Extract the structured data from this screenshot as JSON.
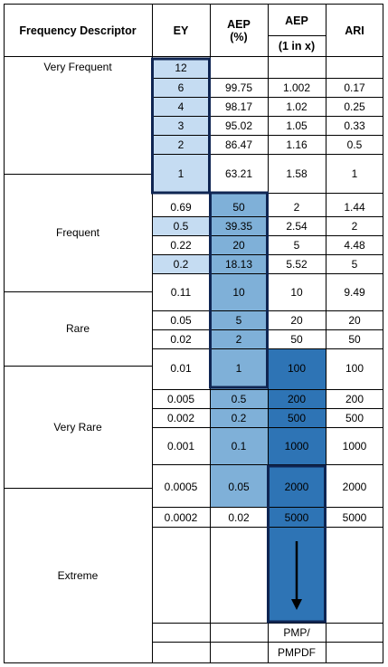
{
  "headers": {
    "descriptor": "Frequency Descriptor",
    "ey": "EY",
    "aep_pct_line1": "AEP",
    "aep_pct_line2": "(%)",
    "aep_1inx_line1": "AEP",
    "aep_1inx_line2": "(1 in x)",
    "ari": "ARI"
  },
  "descriptors": [
    "Very Frequent",
    "Frequent",
    "Rare",
    "Very Rare",
    "Extreme"
  ],
  "rows": [
    {
      "ey": "12",
      "aep_pct": "",
      "aep_1inx": "",
      "ari": ""
    },
    {
      "ey": "6",
      "aep_pct": "99.75",
      "aep_1inx": "1.002",
      "ari": "0.17"
    },
    {
      "ey": "4",
      "aep_pct": "98.17",
      "aep_1inx": "1.02",
      "ari": "0.25"
    },
    {
      "ey": "3",
      "aep_pct": "95.02",
      "aep_1inx": "1.05",
      "ari": "0.33"
    },
    {
      "ey": "2",
      "aep_pct": "86.47",
      "aep_1inx": "1.16",
      "ari": "0.5"
    },
    {
      "ey": "1",
      "aep_pct": "63.21",
      "aep_1inx": "1.58",
      "ari": "1"
    },
    {
      "ey": "0.69",
      "aep_pct": "50",
      "aep_1inx": "2",
      "ari": "1.44"
    },
    {
      "ey": "0.5",
      "aep_pct": "39.35",
      "aep_1inx": "2.54",
      "ari": "2"
    },
    {
      "ey": "0.22",
      "aep_pct": "20",
      "aep_1inx": "5",
      "ari": "4.48"
    },
    {
      "ey": "0.2",
      "aep_pct": "18.13",
      "aep_1inx": "5.52",
      "ari": "5"
    },
    {
      "ey": "0.11",
      "aep_pct": "10",
      "aep_1inx": "10",
      "ari": "9.49"
    },
    {
      "ey": "0.05",
      "aep_pct": "5",
      "aep_1inx": "20",
      "ari": "20"
    },
    {
      "ey": "0.02",
      "aep_pct": "2",
      "aep_1inx": "50",
      "ari": "50"
    },
    {
      "ey": "0.01",
      "aep_pct": "1",
      "aep_1inx": "100",
      "ari": "100"
    },
    {
      "ey": "0.005",
      "aep_pct": "0.5",
      "aep_1inx": "200",
      "ari": "200"
    },
    {
      "ey": "0.002",
      "aep_pct": "0.2",
      "aep_1inx": "500",
      "ari": "500"
    },
    {
      "ey": "0.001",
      "aep_pct": "0.1",
      "aep_1inx": "1000",
      "ari": "1000"
    },
    {
      "ey": "0.0005",
      "aep_pct": "0.05",
      "aep_1inx": "2000",
      "ari": "2000"
    },
    {
      "ey": "0.0002",
      "aep_pct": "0.02",
      "aep_1inx": "5000",
      "ari": "5000"
    }
  ],
  "pmp": {
    "line1": "PMP/",
    "line2": "PMPDF"
  },
  "colors": {
    "light": "#c5dcf2",
    "mid": "#7fb0d8",
    "dark": "#2e74b5",
    "frame": "#0f2552",
    "grid": "#000000"
  }
}
